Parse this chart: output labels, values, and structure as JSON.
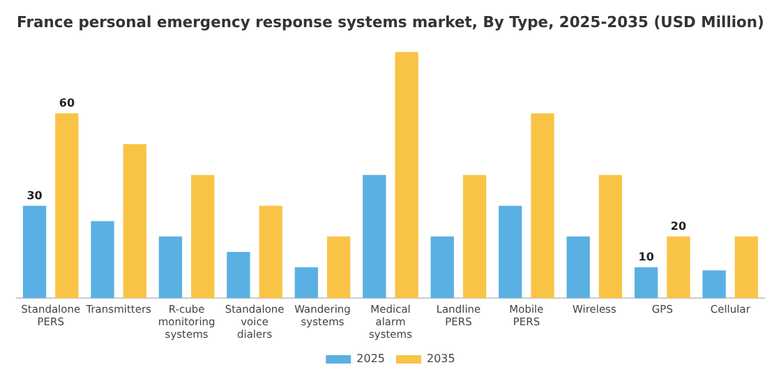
{
  "chart_data": {
    "type": "bar",
    "title": "France personal emergency response systems market, By Type, 2025-2035 (USD Million)",
    "categories": [
      "Standalone PERS",
      "Transmitters",
      "R-cube monitoring systems",
      "Standalone voice dialers",
      "Wandering systems",
      "Medical alarm systems",
      "Landline PERS",
      "Mobile PERS",
      "Wireless",
      "GPS",
      "Cellular"
    ],
    "series": [
      {
        "name": "2025",
        "color": "#5ab0e2",
        "values": [
          30,
          25,
          20,
          15,
          10,
          40,
          20,
          30,
          20,
          10,
          9
        ],
        "value_labels": [
          "30",
          null,
          null,
          null,
          null,
          null,
          null,
          null,
          null,
          "10",
          null
        ]
      },
      {
        "name": "2035",
        "color": "#f9c446",
        "values": [
          60,
          50,
          40,
          30,
          20,
          80,
          40,
          60,
          40,
          20,
          20
        ],
        "value_labels": [
          "60",
          null,
          null,
          null,
          null,
          null,
          null,
          null,
          null,
          "20",
          null
        ]
      }
    ],
    "ylim": [
      0,
      80
    ],
    "tick_labels": "x",
    "grid": false,
    "legend": "bottom"
  }
}
